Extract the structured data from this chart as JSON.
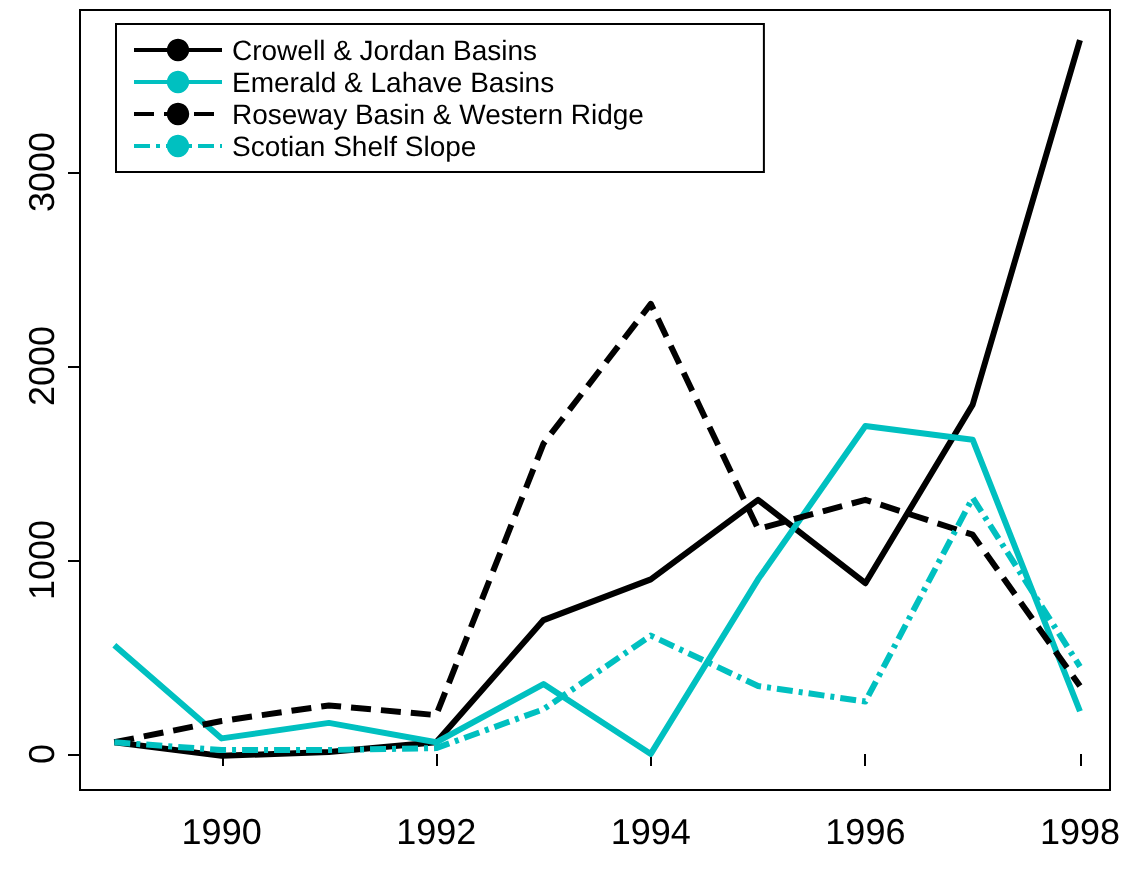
{
  "chart_data": {
    "type": "line",
    "x": [
      1989,
      1990,
      1991,
      1992,
      1993,
      1994,
      1995,
      1996,
      1997,
      1998
    ],
    "series": [
      {
        "name": "Crowell & Jordan Basins",
        "color": "#000000",
        "line_style": "solid",
        "values": [
          60,
          -10,
          10,
          60,
          690,
          900,
          1310,
          880,
          1800,
          3680
        ]
      },
      {
        "name": "Emerald & Lahave Basins",
        "color": "#00c0c0",
        "line_style": "solid",
        "values": [
          560,
          80,
          160,
          60,
          360,
          0,
          900,
          1690,
          1620,
          220
        ]
      },
      {
        "name": "Roseway Basin & Western Ridge",
        "color": "#000000",
        "line_style": "dashed",
        "values": [
          60,
          170,
          250,
          200,
          1600,
          2320,
          1160,
          1310,
          1130,
          350
        ]
      },
      {
        "name": "Scotian Shelf Slope",
        "color": "#00c0c0",
        "line_style": "dashdot",
        "values": [
          60,
          20,
          20,
          30,
          230,
          610,
          350,
          270,
          1320,
          450
        ]
      }
    ],
    "xlim": [
      1988.68,
      1998.28
    ],
    "xticks": [
      1990,
      1992,
      1994,
      1996,
      1998
    ],
    "ylim": [
      -186,
      3835
    ],
    "yticks": [
      0,
      1000,
      2000,
      3000
    ],
    "grid": false,
    "legend": "top left",
    "marker": "none"
  }
}
